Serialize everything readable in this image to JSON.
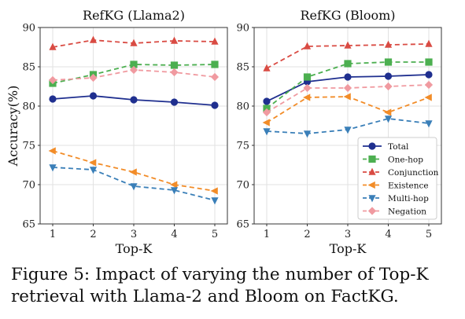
{
  "chart_data": [
    {
      "type": "line",
      "title": "RefKG (Llama2)",
      "xlabel": "Top-K",
      "ylabel": "Accuracy(%)",
      "x": [
        1,
        2,
        3,
        4,
        5
      ],
      "xticks": [
        "1",
        "2",
        "3",
        "4",
        "5"
      ],
      "ylim": [
        65,
        90
      ],
      "yticks": [
        "65",
        "70",
        "75",
        "80",
        "85",
        "90"
      ],
      "grid": true,
      "series": [
        {
          "name": "Total",
          "values": [
            80.9,
            81.3,
            80.8,
            80.5,
            80.1
          ],
          "color": "#1f2f8f",
          "marker": "circle",
          "dash": "solid"
        },
        {
          "name": "One-hop",
          "values": [
            82.9,
            84.0,
            85.3,
            85.2,
            85.3
          ],
          "color": "#4caf50",
          "marker": "square",
          "dash": "dashed"
        },
        {
          "name": "Conjunction",
          "values": [
            87.5,
            88.4,
            88.0,
            88.3,
            88.2
          ],
          "color": "#d94b43",
          "marker": "triangle-up",
          "dash": "dashed"
        },
        {
          "name": "Existence",
          "values": [
            74.3,
            72.8,
            71.6,
            70.0,
            69.2
          ],
          "color": "#f28c28",
          "marker": "triangle-left",
          "dash": "dashed"
        },
        {
          "name": "Multi-hop",
          "values": [
            72.2,
            71.9,
            69.8,
            69.3,
            68.0
          ],
          "color": "#3a7fb8",
          "marker": "triangle-down",
          "dash": "dashed"
        },
        {
          "name": "Negation",
          "values": [
            83.3,
            83.6,
            84.6,
            84.3,
            83.7
          ],
          "color": "#f09aa0",
          "marker": "diamond",
          "dash": "dashed"
        }
      ]
    },
    {
      "type": "line",
      "title": "RefKG (Bloom)",
      "xlabel": "Top-K",
      "ylabel": "",
      "x": [
        1,
        2,
        3,
        4,
        5
      ],
      "xticks": [
        "1",
        "2",
        "3",
        "4",
        "5"
      ],
      "ylim": [
        65,
        90
      ],
      "yticks": [
        "65",
        "70",
        "75",
        "80",
        "85",
        "90"
      ],
      "grid": true,
      "legend": "bottom-right",
      "series": [
        {
          "name": "Total",
          "values": [
            80.6,
            83.1,
            83.7,
            83.8,
            84.0
          ],
          "color": "#1f2f8f",
          "marker": "circle",
          "dash": "solid"
        },
        {
          "name": "One-hop",
          "values": [
            79.7,
            83.7,
            85.4,
            85.6,
            85.6
          ],
          "color": "#4caf50",
          "marker": "square",
          "dash": "dashed"
        },
        {
          "name": "Conjunction",
          "values": [
            84.8,
            87.6,
            87.7,
            87.8,
            87.9
          ],
          "color": "#d94b43",
          "marker": "triangle-up",
          "dash": "dashed"
        },
        {
          "name": "Existence",
          "values": [
            77.9,
            81.1,
            81.2,
            79.2,
            81.1
          ],
          "color": "#f28c28",
          "marker": "triangle-left",
          "dash": "dashed"
        },
        {
          "name": "Multi-hop",
          "values": [
            76.8,
            76.5,
            77.0,
            78.4,
            77.8
          ],
          "color": "#3a7fb8",
          "marker": "triangle-down",
          "dash": "dashed"
        },
        {
          "name": "Negation",
          "values": [
            79.2,
            82.3,
            82.3,
            82.5,
            82.7
          ],
          "color": "#f09aa0",
          "marker": "diamond",
          "dash": "dashed"
        }
      ]
    }
  ],
  "caption": "Figure 5: Impact of varying the number of Top-K retrieval with Llama-2 and Bloom on FactKG."
}
